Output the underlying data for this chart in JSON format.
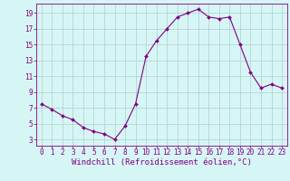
{
  "x": [
    0,
    1,
    2,
    3,
    4,
    5,
    6,
    7,
    8,
    9,
    10,
    11,
    12,
    13,
    14,
    15,
    16,
    17,
    18,
    19,
    20,
    21,
    22,
    23
  ],
  "y": [
    7.5,
    6.8,
    6.0,
    5.5,
    4.5,
    4.0,
    3.7,
    3.0,
    4.7,
    7.5,
    13.5,
    15.5,
    17.0,
    18.5,
    19.0,
    19.5,
    18.5,
    18.3,
    18.5,
    15.0,
    11.5,
    9.5,
    10.0,
    9.5
  ],
  "line_color": "#800080",
  "marker": "D",
  "marker_size": 2.0,
  "bg_color": "#d6f5f5",
  "grid_color": "#b0cece",
  "xlabel": "Windchill (Refroidissement éolien,°C)",
  "xlabel_color": "#800080",
  "yticks": [
    3,
    5,
    7,
    9,
    11,
    13,
    15,
    17,
    19
  ],
  "xticks": [
    0,
    1,
    2,
    3,
    4,
    5,
    6,
    7,
    8,
    9,
    10,
    11,
    12,
    13,
    14,
    15,
    16,
    17,
    18,
    19,
    20,
    21,
    22,
    23
  ],
  "ylim": [
    2.2,
    20.2
  ],
  "xlim": [
    -0.5,
    23.5
  ],
  "tick_color": "#800080",
  "tick_fontsize": 5.5,
  "xlabel_fontsize": 6.5,
  "spine_color": "#800080",
  "linewidth": 0.8
}
